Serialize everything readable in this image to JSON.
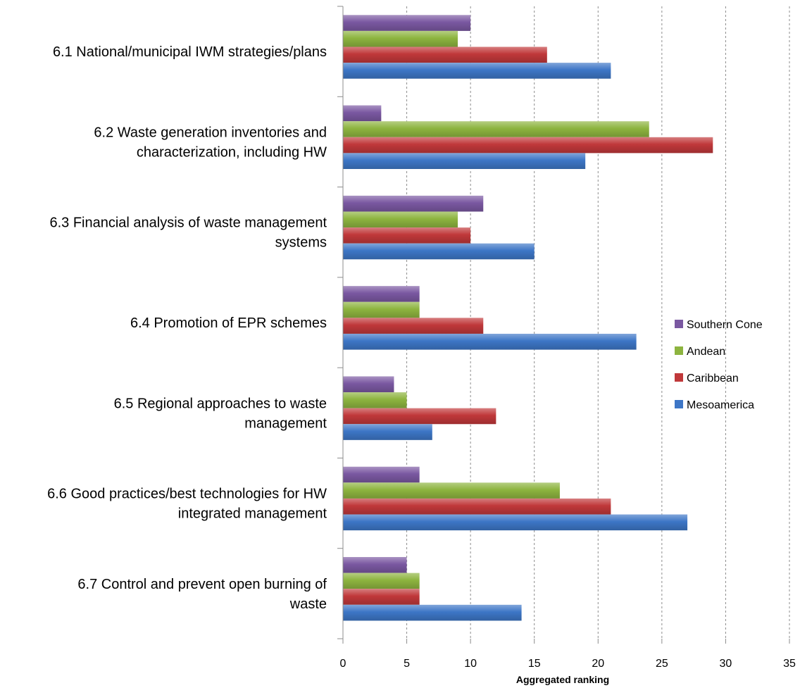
{
  "chart_data": {
    "type": "bar",
    "orientation": "horizontal",
    "categories": [
      [
        "6.1 National/municipal IWM strategies/plans"
      ],
      [
        "6.2 Waste generation inventories and",
        "characterization, including HW"
      ],
      [
        "6.3 Financial analysis of waste management",
        "systems"
      ],
      [
        "6.4 Promotion of EPR schemes"
      ],
      [
        "6.5 Regional approaches to waste",
        "management"
      ],
      [
        "6.6 Good practices/best technologies for HW",
        "integrated management"
      ],
      [
        "6.7 Control and prevent open burning of",
        "waste"
      ]
    ],
    "series": [
      {
        "name": "Southern Cone",
        "color": "#7a58a1",
        "values": [
          10,
          3,
          11,
          6,
          4,
          6,
          5
        ]
      },
      {
        "name": "Andean",
        "color": "#8db43f",
        "values": [
          9,
          24,
          9,
          6,
          5,
          17,
          6
        ]
      },
      {
        "name": "Caribbean",
        "color": "#c0383a",
        "values": [
          16,
          29,
          10,
          11,
          12,
          21,
          6
        ]
      },
      {
        "name": "Mesoamerica",
        "color": "#3d76c6",
        "values": [
          21,
          19,
          15,
          23,
          7,
          27,
          14
        ]
      }
    ],
    "xlabel": "Aggregated ranking",
    "xlim": [
      0,
      35
    ],
    "xticks": [
      "0",
      "5",
      "10",
      "15",
      "20",
      "25",
      "30",
      "35"
    ],
    "grid": true,
    "legend_position": "right"
  }
}
